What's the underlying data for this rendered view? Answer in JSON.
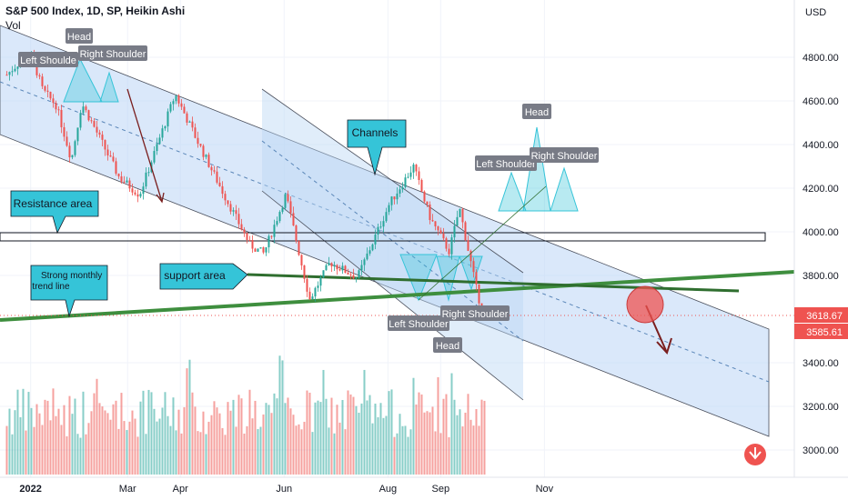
{
  "header": {
    "symbol_line": "S&P 500 Index, 1D, SP, Heikin Ashi",
    "vol_label": "Vol"
  },
  "axis": {
    "currency": "USD",
    "y_ticks": [
      "4800.00",
      "4600.00",
      "4400.00",
      "4200.00",
      "4000.00",
      "3800.00",
      "3400.00",
      "3200.00",
      "3000.00"
    ],
    "x_ticks": [
      "2022",
      "Mar",
      "Apr",
      "Jun",
      "Aug",
      "Sep",
      "Nov"
    ]
  },
  "price_badges": {
    "last": "3618.67",
    "prev": "3585.61"
  },
  "annotations": {
    "head_1": "Head",
    "left_shoulder_1": "Left Shoulde",
    "right_shoulder_1": "Right Shoulder",
    "channels": "Channels",
    "resistance": "Resistance area",
    "support": "support area",
    "trend_line": "Strong monthly trend line",
    "left_shoulder_2": "Left Shoulder",
    "right_shoulder_2": "Right Shoulder",
    "head_2": "Head",
    "head_3": "Head",
    "left_shoulder_3": "Left Shoulder",
    "right_shoulder_3": "Right Shoulder"
  },
  "colors": {
    "up": "#26a69a",
    "down": "#ef5350",
    "channel_fill": "#bbd6f5",
    "callout": "#35c4d8",
    "label_bg": "#787b86",
    "trend": "#3e8e3e"
  },
  "chart_data": {
    "type": "candlestick",
    "y_scale": "linear",
    "grid": true,
    "price_points": [
      {
        "x": "2021-12-20",
        "y": 4720
      },
      {
        "x": "2021-12-29",
        "y": 4790
      },
      {
        "x": "2022-01-04",
        "y": 4800
      },
      {
        "x": "2022-01-10",
        "y": 4650
      },
      {
        "x": "2022-01-18",
        "y": 4580
      },
      {
        "x": "2022-01-27",
        "y": 4330
      },
      {
        "x": "2022-02-02",
        "y": 4590
      },
      {
        "x": "2022-02-10",
        "y": 4470
      },
      {
        "x": "2022-02-24",
        "y": 4250
      },
      {
        "x": "2022-03-08",
        "y": 4170
      },
      {
        "x": "2022-03-29",
        "y": 4630
      },
      {
        "x": "2022-04-12",
        "y": 4400
      },
      {
        "x": "2022-04-28",
        "y": 4150
      },
      {
        "x": "2022-05-12",
        "y": 3940
      },
      {
        "x": "2022-05-20",
        "y": 3900
      },
      {
        "x": "2022-06-02",
        "y": 4170
      },
      {
        "x": "2022-06-16",
        "y": 3690
      },
      {
        "x": "2022-06-28",
        "y": 3860
      },
      {
        "x": "2022-07-14",
        "y": 3790
      },
      {
        "x": "2022-08-02",
        "y": 4130
      },
      {
        "x": "2022-08-16",
        "y": 4300
      },
      {
        "x": "2022-08-26",
        "y": 4060
      },
      {
        "x": "2022-09-06",
        "y": 3910
      },
      {
        "x": "2022-09-12",
        "y": 4110
      },
      {
        "x": "2022-09-23",
        "y": 3700
      },
      {
        "x": "2022-09-28",
        "y": 3618.67
      }
    ]
  }
}
